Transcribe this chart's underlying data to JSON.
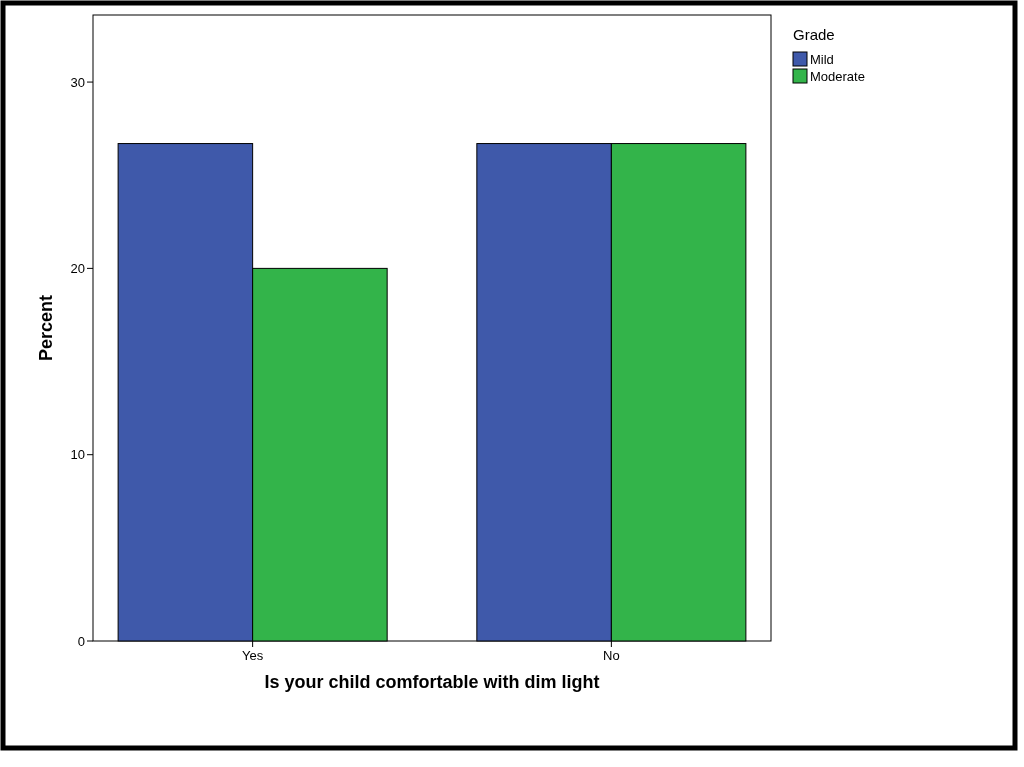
{
  "chart_data": {
    "type": "bar",
    "xlabel": "Is your child comfortable with dim light",
    "ylabel": "Percent",
    "legend_title": "Grade",
    "legend": "top right",
    "categories": [
      "Yes",
      "No"
    ],
    "series": [
      {
        "name": "Mild",
        "color": "#3f59aa",
        "values": [
          26.7,
          26.7
        ]
      },
      {
        "name": "Moderate",
        "color": "#33b44a",
        "values": [
          20,
          26.7
        ]
      }
    ],
    "ylim": [
      0,
      33.6
    ],
    "yticks": [
      0,
      10,
      20,
      30
    ],
    "grid": false
  }
}
